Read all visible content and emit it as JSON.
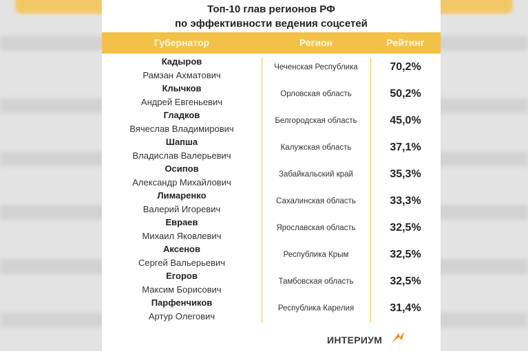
{
  "title": {
    "line1": "Топ-10 глав регионов РФ",
    "line2": "по эффективности ведения соцсетей"
  },
  "header": {
    "governor": "Губернатор",
    "region": "Регион",
    "rating": "Рейтинг"
  },
  "rows": [
    {
      "surname": "Кадыров",
      "name": "Рамзан Ахматович",
      "region": "Чеченская Республика",
      "rating": "70,2%"
    },
    {
      "surname": "Клычков",
      "name": "Андрей Евгеньевич",
      "region": "Орловская область",
      "rating": "50,2%"
    },
    {
      "surname": "Гладков",
      "name": "Вячеслав Владимирович",
      "region": "Белгородская область",
      "rating": "45,0%"
    },
    {
      "surname": "Шапша",
      "name": "Владислав Валерьевич",
      "region": "Калужская область",
      "rating": "37,1%"
    },
    {
      "surname": "Осипов",
      "name": "Александр Михайлович",
      "region": "Забайкальский край",
      "rating": "35,3%"
    },
    {
      "surname": "Лимаренко",
      "name": "Валерий Игоревич",
      "region": "Сахалинская область",
      "rating": "33,3%"
    },
    {
      "surname": "Евраев",
      "name": "Михаил Яковлевич",
      "region": "Ярославская область",
      "rating": "32,5%"
    },
    {
      "surname": "Аксенов",
      "name": "Сергей Вальерьевич",
      "region": "Республика Крым",
      "rating": "32,5%"
    },
    {
      "surname": "Егоров",
      "name": "Максим Борисович",
      "region": "Тамбовская область",
      "rating": "32,5%"
    },
    {
      "surname": "Парфенчиков",
      "name": "Артур Олегович",
      "region": "Республика Карелия",
      "rating": "31,4%"
    }
  ],
  "logo": {
    "text": "ИНТЕРИУМ",
    "icon": "interium-logo-icon"
  },
  "colors": {
    "accent": "#f3c148",
    "header_text": "#fff8e6",
    "background": "#ffffff"
  }
}
